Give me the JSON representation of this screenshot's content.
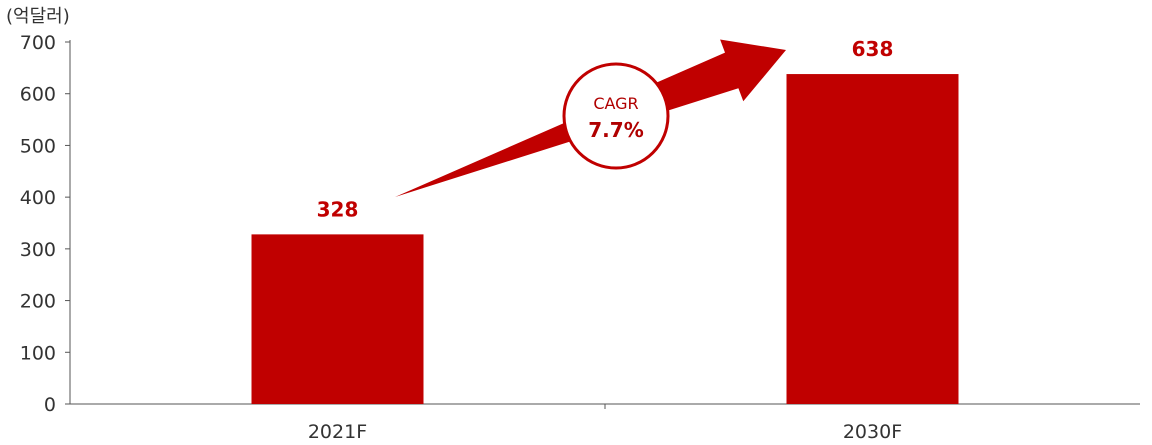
{
  "chart_data": {
    "type": "bar",
    "unit_label": "(억달러)",
    "categories": [
      "2021F",
      "2030F"
    ],
    "values": [
      328,
      638
    ],
    "value_labels": [
      "328",
      "638"
    ],
    "ylim": [
      0,
      700
    ],
    "yticks": [
      0,
      100,
      200,
      300,
      400,
      500,
      600,
      700
    ],
    "bar_color": "#c00000",
    "annotation": {
      "label": "CAGR",
      "value": "7.7%",
      "color": "#c00000"
    },
    "grid": false,
    "legend": "none"
  }
}
